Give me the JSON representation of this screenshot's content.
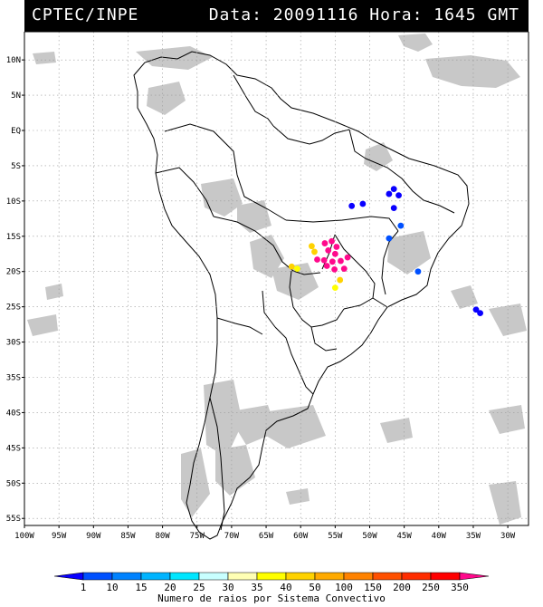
{
  "header": {
    "source": "CPTEC/INPE",
    "datetime": "Data: 20091116 Hora: 1645 GMT"
  },
  "axes": {
    "lat_labels": [
      "10N",
      "5N",
      "EQ",
      "5S",
      "10S",
      "15S",
      "20S",
      "25S",
      "30S",
      "35S",
      "40S",
      "45S",
      "50S",
      "55S"
    ],
    "lat_values": [
      10,
      5,
      0,
      -5,
      -10,
      -15,
      -20,
      -25,
      -30,
      -35,
      -40,
      -45,
      -50,
      -55
    ],
    "lon_labels": [
      "100W",
      "95W",
      "90W",
      "85W",
      "80W",
      "75W",
      "70W",
      "65W",
      "60W",
      "55W",
      "50W",
      "45W",
      "40W",
      "35W",
      "30W"
    ],
    "lon_values": [
      -100,
      -95,
      -90,
      -85,
      -80,
      -75,
      -70,
      -65,
      -60,
      -55,
      -50,
      -45,
      -40,
      -35,
      -30
    ],
    "lon_range": [
      -100,
      -27
    ],
    "lat_range": [
      -56,
      14
    ],
    "grid": true
  },
  "colors": {
    "cloud": "#c8c8c8",
    "border": "#000000",
    "grid": "#9a9a9a"
  },
  "legend": {
    "title": "Numero de raios por Sistema Convectivo",
    "labels": [
      "1",
      "10",
      "15",
      "20",
      "25",
      "30",
      "35",
      "40",
      "50",
      "100",
      "150",
      "200",
      "250",
      "350"
    ],
    "colors": [
      "#0a00ff",
      "#0050ff",
      "#0082ff",
      "#00b4ff",
      "#00e6ff",
      "#c8ffff",
      "#ffffb4",
      "#ffff00",
      "#ffd200",
      "#ffaa00",
      "#ff8200",
      "#ff5000",
      "#ff2d00",
      "#ff0000",
      "#ff0a8c"
    ]
  },
  "lightning": [
    {
      "lon": -46.5,
      "lat": -8.3,
      "level": 0
    },
    {
      "lon": -45.8,
      "lat": -9.2,
      "level": 0
    },
    {
      "lon": -47.2,
      "lat": -9.0,
      "level": 0
    },
    {
      "lon": -51.0,
      "lat": -10.4,
      "level": 0
    },
    {
      "lon": -52.6,
      "lat": -10.7,
      "level": 0
    },
    {
      "lon": -46.5,
      "lat": -11.0,
      "level": 0
    },
    {
      "lon": -45.5,
      "lat": -13.5,
      "level": 1
    },
    {
      "lon": -47.2,
      "lat": -15.3,
      "level": 1
    },
    {
      "lon": -43.0,
      "lat": -20.0,
      "level": 1
    },
    {
      "lon": -34.6,
      "lat": -25.4,
      "level": 0
    },
    {
      "lon": -34.0,
      "lat": -25.9,
      "level": 0
    },
    {
      "lon": -58.0,
      "lat": -17.2,
      "level": 8
    },
    {
      "lon": -58.4,
      "lat": -16.4,
      "level": 8
    },
    {
      "lon": -61.3,
      "lat": -19.3,
      "level": 8
    },
    {
      "lon": -60.5,
      "lat": -19.6,
      "level": 7
    },
    {
      "lon": -54.3,
      "lat": -21.2,
      "level": 8
    },
    {
      "lon": -55.0,
      "lat": -22.3,
      "level": 7
    },
    {
      "lon": -56.5,
      "lat": -16.0,
      "level": 14
    },
    {
      "lon": -55.5,
      "lat": -15.7,
      "level": 14
    },
    {
      "lon": -56.0,
      "lat": -17.0,
      "level": 14
    },
    {
      "lon": -55.0,
      "lat": -17.5,
      "level": 14
    },
    {
      "lon": -56.6,
      "lat": -18.4,
      "level": 14
    },
    {
      "lon": -55.4,
      "lat": -18.6,
      "level": 14
    },
    {
      "lon": -54.2,
      "lat": -18.5,
      "level": 14
    },
    {
      "lon": -53.7,
      "lat": -19.6,
      "level": 14
    },
    {
      "lon": -55.1,
      "lat": -19.7,
      "level": 14
    },
    {
      "lon": -56.2,
      "lat": -19.2,
      "level": 14
    },
    {
      "lon": -57.6,
      "lat": -18.3,
      "level": 14
    },
    {
      "lon": -54.8,
      "lat": -16.5,
      "level": 14
    },
    {
      "lon": -53.2,
      "lat": -18.0,
      "level": 14
    }
  ]
}
